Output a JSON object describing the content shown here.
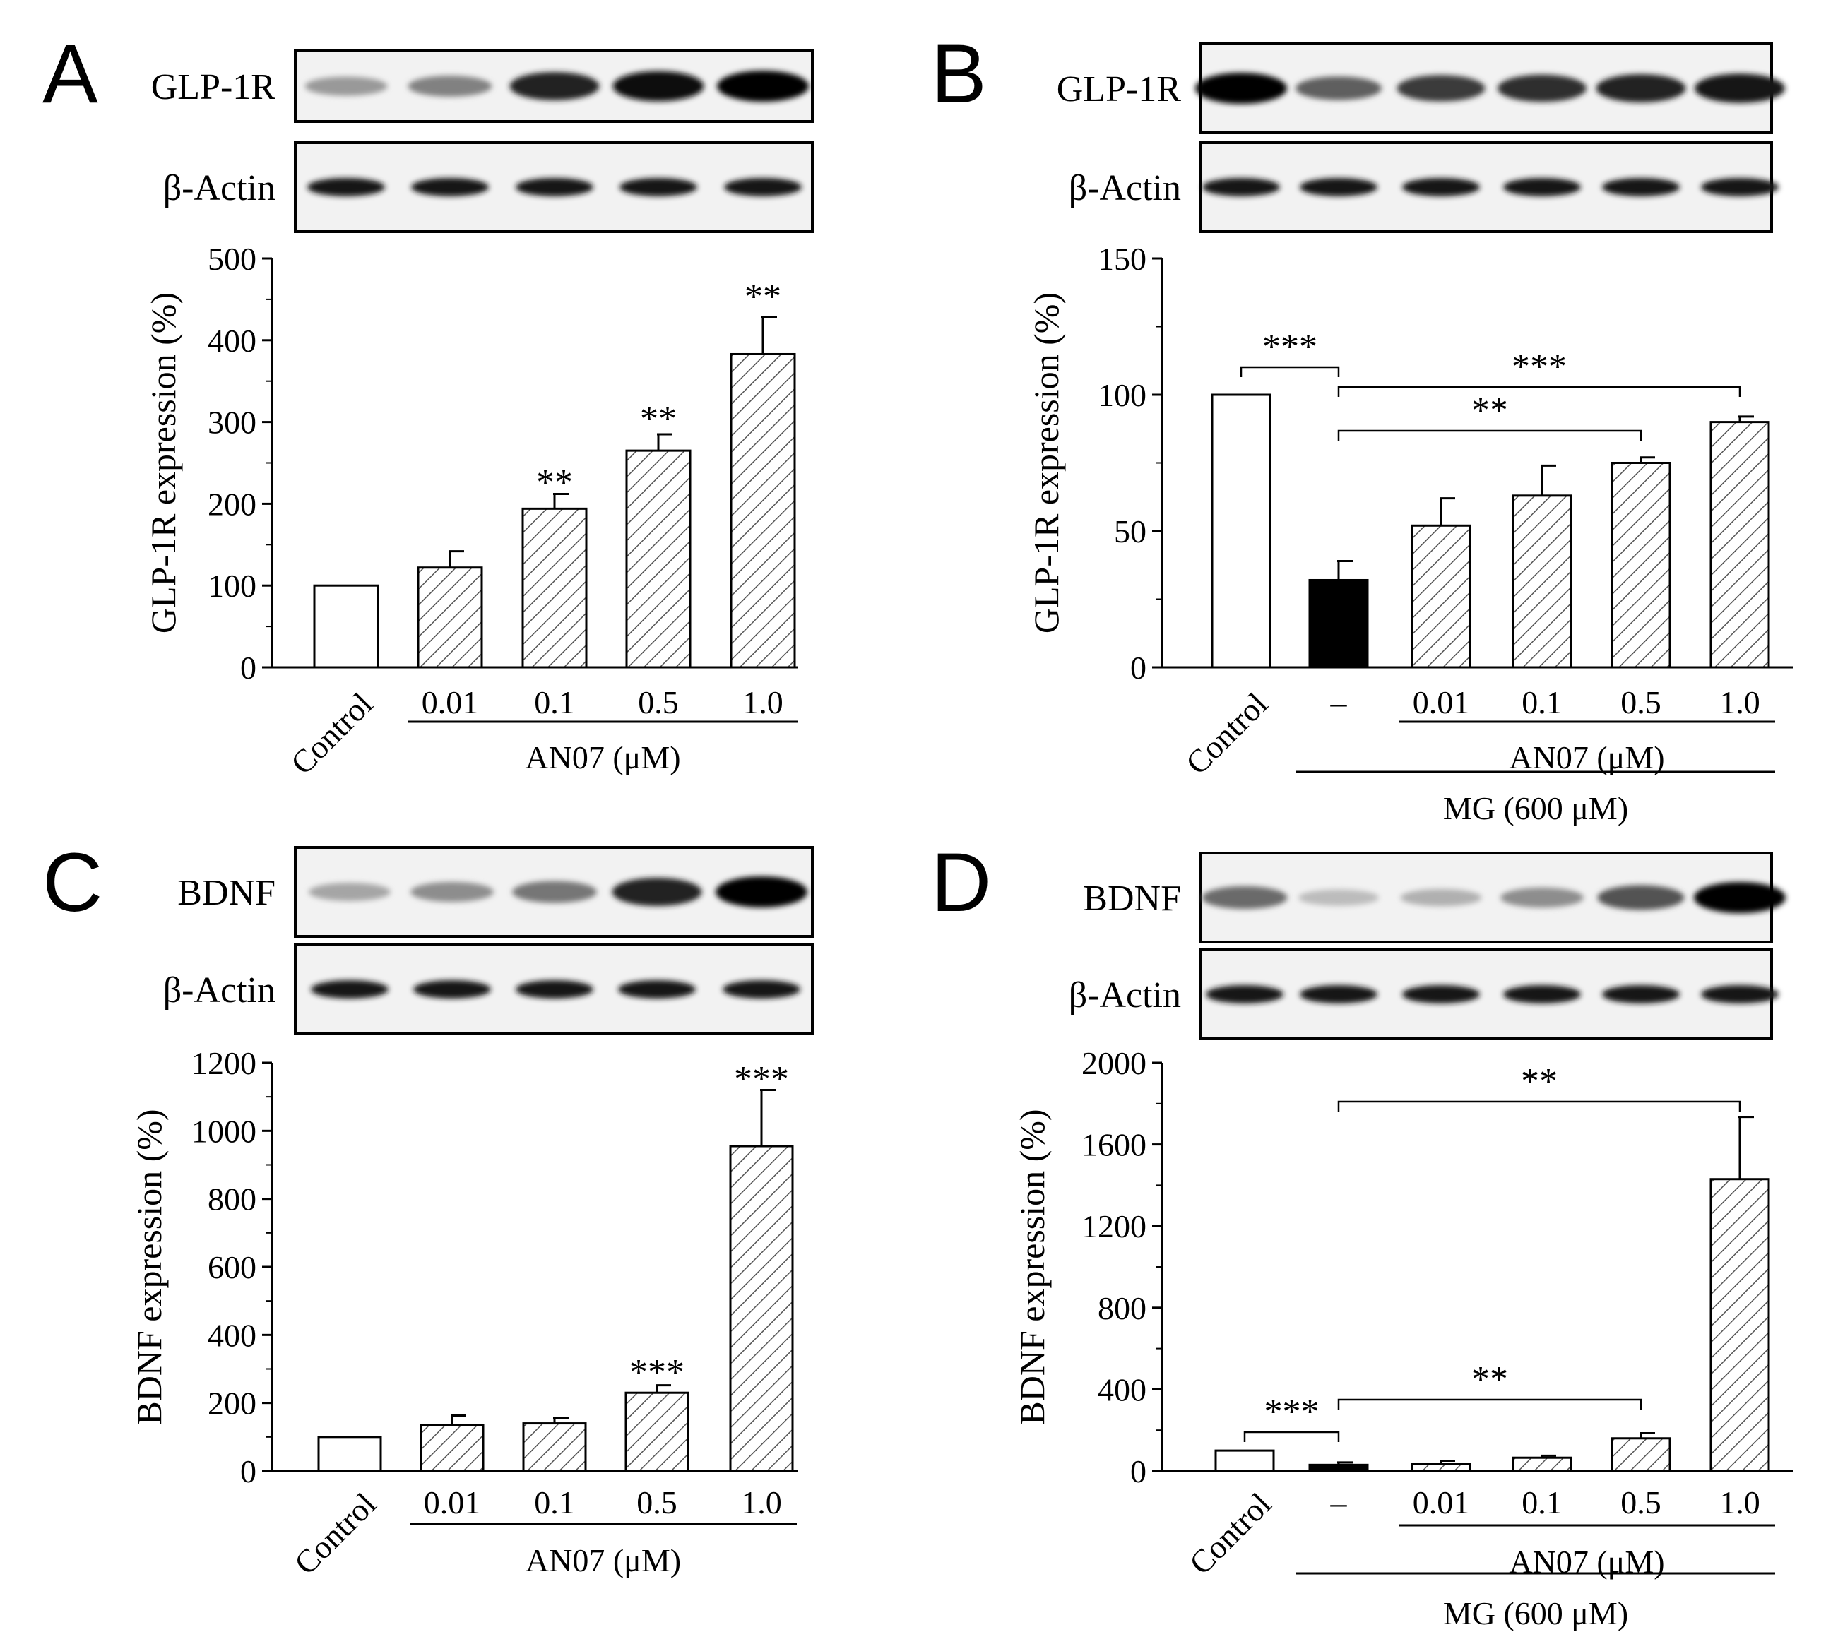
{
  "figure": {
    "panels": [
      {
        "letter": "A",
        "blots": [
          {
            "label": "GLP-1R",
            "intensities": [
              0.35,
              0.45,
              0.85,
              0.95,
              1.0
            ]
          },
          {
            "label": "β-Actin",
            "intensities": [
              0.9,
              0.9,
              0.9,
              0.9,
              0.9
            ]
          }
        ],
        "yaxis_label": "GLP-1R expression (%)",
        "ticks": [
          "0",
          "100",
          "200",
          "300",
          "400",
          "500"
        ],
        "categories": [
          "Control",
          "0.01",
          "0.1",
          "0.5",
          "1.0"
        ],
        "group_labels": [
          "AN07 (μM)"
        ],
        "sig_labels": [
          "**",
          "**",
          "**"
        ]
      },
      {
        "letter": "B",
        "blots": [
          {
            "label": "GLP-1R",
            "intensities": [
              1.0,
              0.6,
              0.75,
              0.8,
              0.85,
              0.9
            ]
          },
          {
            "label": "β-Actin",
            "intensities": [
              0.9,
              0.9,
              0.9,
              0.9,
              0.9,
              0.9
            ]
          }
        ],
        "yaxis_label": "GLP-1R expression (%)",
        "ticks": [
          "0",
          "50",
          "100",
          "150"
        ],
        "categories": [
          "Control",
          "–",
          "0.01",
          "0.1",
          "0.5",
          "1.0"
        ],
        "group_labels": [
          "AN07 (μM)",
          "MG (600 μM)"
        ],
        "sig_labels": [
          "***",
          "***",
          "**"
        ]
      },
      {
        "letter": "C",
        "blots": [
          {
            "label": "BDNF",
            "intensities": [
              0.3,
              0.4,
              0.5,
              0.85,
              1.0
            ]
          },
          {
            "label": "β-Actin",
            "intensities": [
              0.9,
              0.9,
              0.9,
              0.9,
              0.9
            ]
          }
        ],
        "yaxis_label": "BDNF expression (%)",
        "ticks": [
          "0",
          "200",
          "400",
          "600",
          "800",
          "1000",
          "1200"
        ],
        "categories": [
          "Control",
          "0.01",
          "0.1",
          "0.5",
          "1.0"
        ],
        "group_labels": [
          "AN07 (μM)"
        ],
        "sig_labels": [
          "***",
          "***"
        ]
      },
      {
        "letter": "D",
        "blots": [
          {
            "label": "BDNF",
            "intensities": [
              0.55,
              0.2,
              0.25,
              0.4,
              0.65,
              1.0
            ]
          },
          {
            "label": "β-Actin",
            "intensities": [
              0.9,
              0.9,
              0.9,
              0.9,
              0.9,
              0.9
            ]
          }
        ],
        "yaxis_label": "BDNF expression (%)",
        "ticks": [
          "0",
          "400",
          "800",
          "1200",
          "1600",
          "2000"
        ],
        "categories": [
          "Control",
          "–",
          "0.01",
          "0.1",
          "0.5",
          "1.0"
        ],
        "group_labels": [
          "AN07 (μM)",
          "MG (600 μM)"
        ],
        "sig_labels": [
          "**",
          "***",
          "**"
        ]
      }
    ]
  },
  "chart_data": [
    {
      "panel": "A",
      "type": "bar",
      "ylabel": "GLP-1R expression (%)",
      "ylim": [
        0,
        500
      ],
      "categories": [
        "Control",
        "0.01",
        "0.1",
        "0.5",
        "1.0"
      ],
      "values": [
        100,
        122,
        194,
        265,
        383
      ],
      "errors": [
        0,
        20,
        18,
        20,
        45
      ],
      "fills": [
        "white",
        "hatched",
        "hatched",
        "hatched",
        "hatched"
      ]
    },
    {
      "panel": "B",
      "type": "bar",
      "ylabel": "GLP-1R expression (%)",
      "ylim": [
        0,
        150
      ],
      "categories": [
        "Control",
        "–",
        "0.01",
        "0.1",
        "0.5",
        "1.0"
      ],
      "values": [
        100,
        32,
        52,
        63,
        75,
        90
      ],
      "errors": [
        0,
        7,
        10,
        11,
        2,
        2
      ],
      "fills": [
        "white",
        "black",
        "hatched",
        "hatched",
        "hatched",
        "hatched"
      ]
    },
    {
      "panel": "C",
      "type": "bar",
      "ylabel": "BDNF expression (%)",
      "ylim": [
        0,
        1200
      ],
      "categories": [
        "Control",
        "0.01",
        "0.1",
        "0.5",
        "1.0"
      ],
      "values": [
        100,
        135,
        140,
        230,
        955
      ],
      "errors": [
        0,
        28,
        15,
        22,
        165
      ],
      "fills": [
        "white",
        "hatched",
        "hatched",
        "hatched",
        "hatched"
      ]
    },
    {
      "panel": "D",
      "type": "bar",
      "ylabel": "BDNF expression (%)",
      "ylim": [
        0,
        2000
      ],
      "categories": [
        "Control",
        "–",
        "0.01",
        "0.1",
        "0.5",
        "1.0"
      ],
      "values": [
        100,
        30,
        35,
        65,
        160,
        1430
      ],
      "errors": [
        0,
        12,
        15,
        10,
        25,
        305
      ],
      "fills": [
        "white",
        "black",
        "hatched",
        "hatched",
        "hatched",
        "hatched"
      ]
    }
  ]
}
